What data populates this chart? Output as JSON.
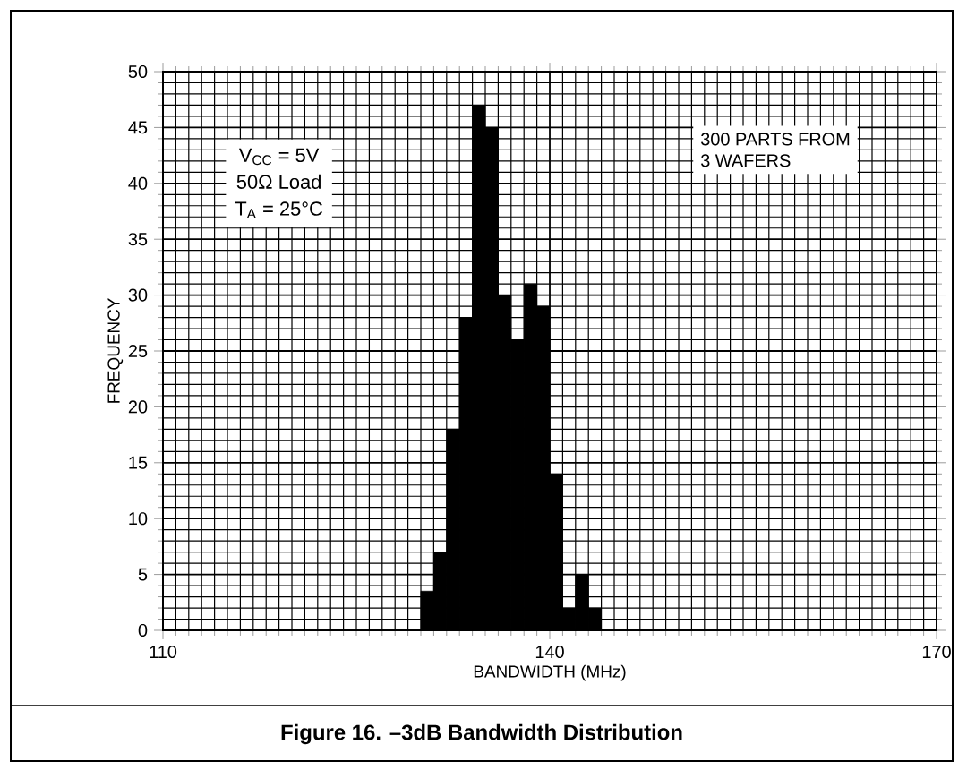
{
  "chart_data": {
    "type": "histogram",
    "title": "Figure 16.  –3dB Bandwidth Distribution",
    "xlabel": "BANDWIDTH (MHz)",
    "ylabel": "FREQUENCY",
    "bins": [
      130,
      131,
      132,
      133,
      134,
      135,
      136,
      137,
      138,
      139,
      140,
      141,
      142,
      143,
      144
    ],
    "values": [
      3.5,
      7,
      18,
      28,
      47,
      45,
      30,
      26,
      31,
      29,
      14,
      2,
      5,
      2
    ],
    "color": "#000000",
    "xlim": [
      110,
      170
    ],
    "xticks": [
      110,
      140,
      170
    ],
    "ylim": [
      0,
      50
    ],
    "yticks": [
      0,
      5,
      10,
      15,
      20,
      25,
      30,
      35,
      40,
      45,
      50
    ],
    "grid": true,
    "annotations": [
      "V$_{CC}$ = 5V",
      "50Ω Load",
      "T$_{A}$ = 25°C",
      "300 PARTS FROM",
      "3 WAFERS"
    ]
  }
}
